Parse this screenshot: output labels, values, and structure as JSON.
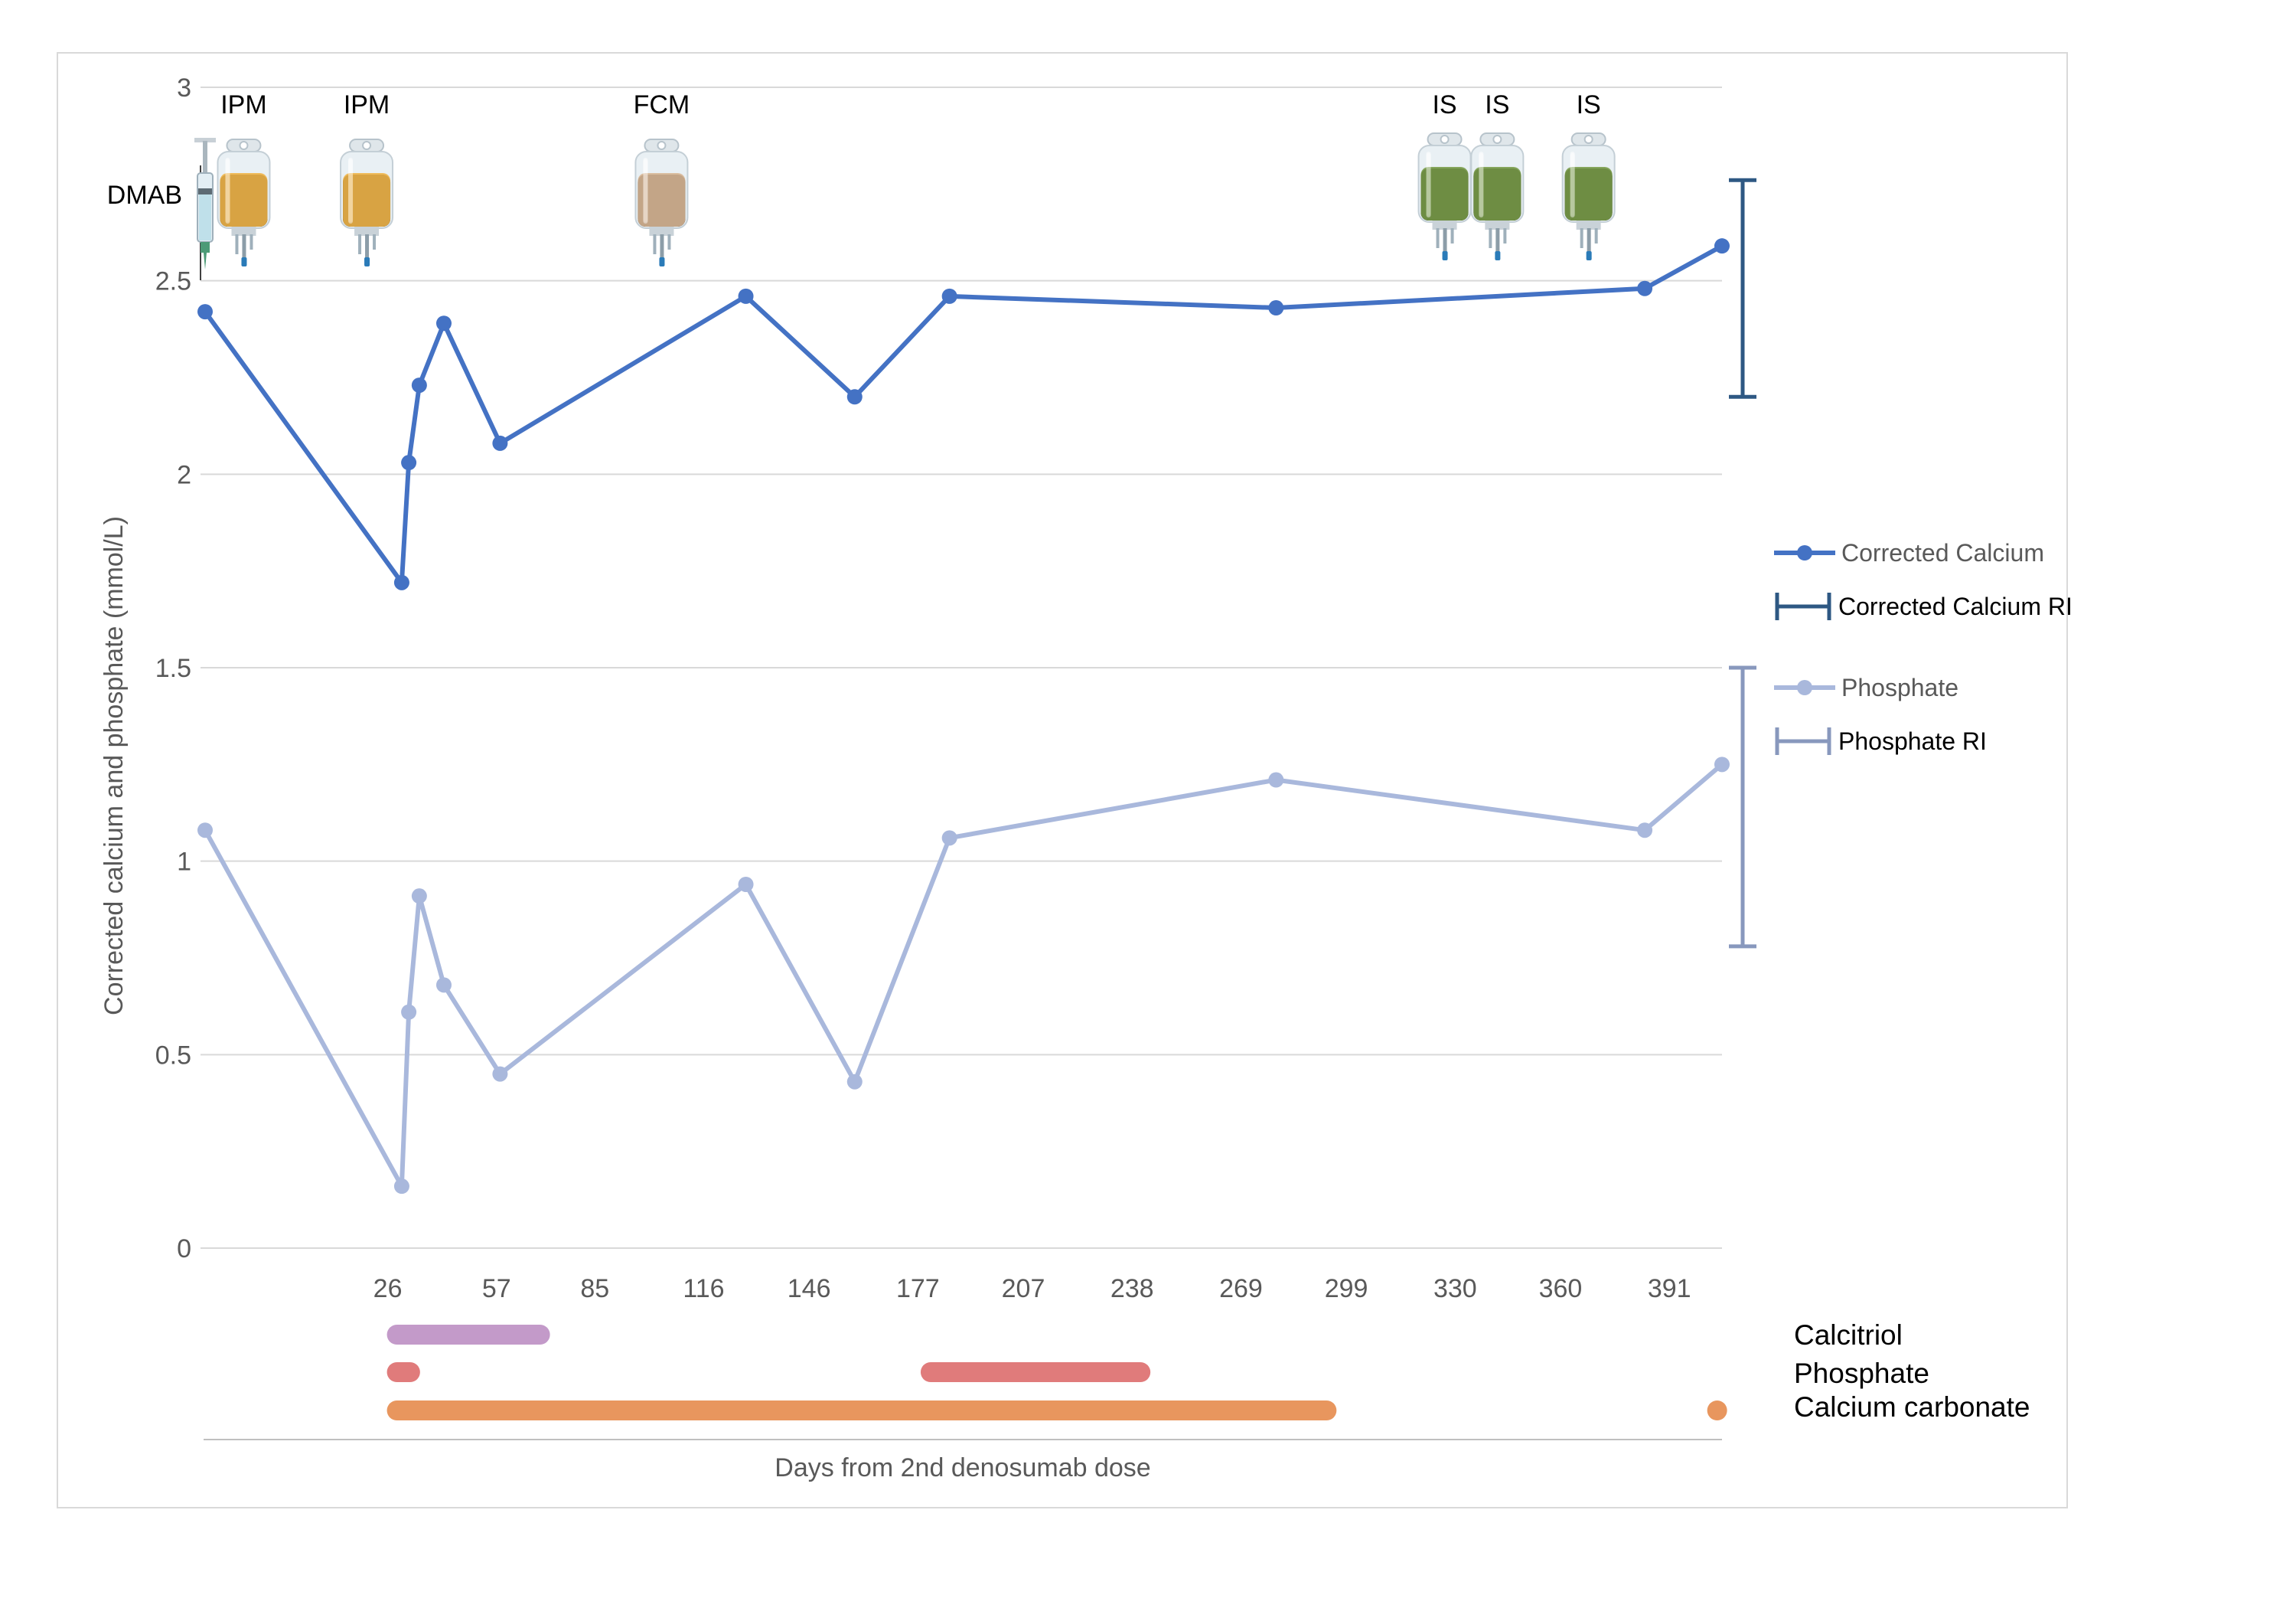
{
  "chart_data": {
    "type": "line",
    "xlabel": "Days from 2nd denosumab dose",
    "ylabel": "Corrected calcium and phosphate (mmol/L)",
    "xlim": [
      -26,
      402
    ],
    "ylim": [
      0,
      3
    ],
    "yticks": [
      {
        "value": 0,
        "label": "0"
      },
      {
        "value": 0.5,
        "label": "0.5"
      },
      {
        "value": 1,
        "label": "1"
      },
      {
        "value": 1.5,
        "label": "1.5"
      },
      {
        "value": 2,
        "label": "2"
      },
      {
        "value": 2.5,
        "label": "2.5"
      },
      {
        "value": 3,
        "label": "3"
      }
    ],
    "xticks": [
      {
        "value": 26,
        "label": "26"
      },
      {
        "value": 57,
        "label": "57"
      },
      {
        "value": 85,
        "label": "85"
      },
      {
        "value": 116,
        "label": "116"
      },
      {
        "value": 146,
        "label": "146"
      },
      {
        "value": 177,
        "label": "177"
      },
      {
        "value": 207,
        "label": "207"
      },
      {
        "value": 238,
        "label": "238"
      },
      {
        "value": 269,
        "label": "269"
      },
      {
        "value": 299,
        "label": "299"
      },
      {
        "value": 330,
        "label": "330"
      },
      {
        "value": 360,
        "label": "360"
      },
      {
        "value": 391,
        "label": "391"
      }
    ],
    "grid": true,
    "legend_position": "right",
    "series": [
      {
        "name": "Corrected Calcium",
        "color": "#4472c4",
        "x": [
          -26,
          30,
          32,
          35,
          42,
          58,
          128,
          159,
          186,
          279,
          384,
          406
        ],
        "y": [
          2.42,
          1.72,
          2.03,
          2.23,
          2.39,
          2.08,
          2.46,
          2.2,
          2.46,
          2.43,
          2.48,
          2.59
        ]
      },
      {
        "name": "Phosphate",
        "color": "#a9b8dc",
        "x": [
          -26,
          30,
          32,
          35,
          42,
          58,
          128,
          159,
          186,
          279,
          384,
          406
        ],
        "y": [
          1.08,
          0.16,
          0.61,
          0.91,
          0.68,
          0.45,
          0.94,
          0.43,
          1.06,
          1.21,
          1.08,
          1.25
        ]
      }
    ],
    "reference_intervals": [
      {
        "name": "Corrected Calcium RI",
        "color": "#2e5883",
        "low": 2.2,
        "high": 2.76
      },
      {
        "name": "Phosphate RI",
        "color": "#8898bd",
        "low": 0.78,
        "high": 1.5
      }
    ],
    "medications": [
      {
        "label": "DMAB",
        "icon": "syringe-icon",
        "x": -26
      },
      {
        "label": "IPM",
        "icon": "iv-bag-icon",
        "color": "#f0b54a",
        "x": -15
      },
      {
        "label": "IPM",
        "icon": "iv-bag-icon",
        "color": "#f0b54a",
        "x": 20
      },
      {
        "label": "FCM",
        "icon": "iv-bag-icon",
        "color": "#d8b796",
        "x": 104
      },
      {
        "label": "IS",
        "icon": "iv-bag-icon",
        "color": "#7a9c4a",
        "x": 327
      },
      {
        "label": "IS",
        "icon": "iv-bag-icon",
        "color": "#7a9c4a",
        "x": 342
      },
      {
        "label": "IS",
        "icon": "iv-bag-icon",
        "color": "#7a9c4a",
        "x": 368
      }
    ],
    "treatments": [
      {
        "name": "Calcitriol",
        "color": "#c39ac9",
        "periods": [
          [
            26,
            72
          ]
        ]
      },
      {
        "name": "Phosphate",
        "color": "#e07b7b",
        "periods": [
          [
            26,
            35
          ],
          [
            178,
            243
          ]
        ]
      },
      {
        "name": "Calcium carbonate",
        "color": "#e8965e",
        "periods": [
          [
            26,
            296
          ],
          [
            402,
            406
          ]
        ]
      }
    ]
  }
}
